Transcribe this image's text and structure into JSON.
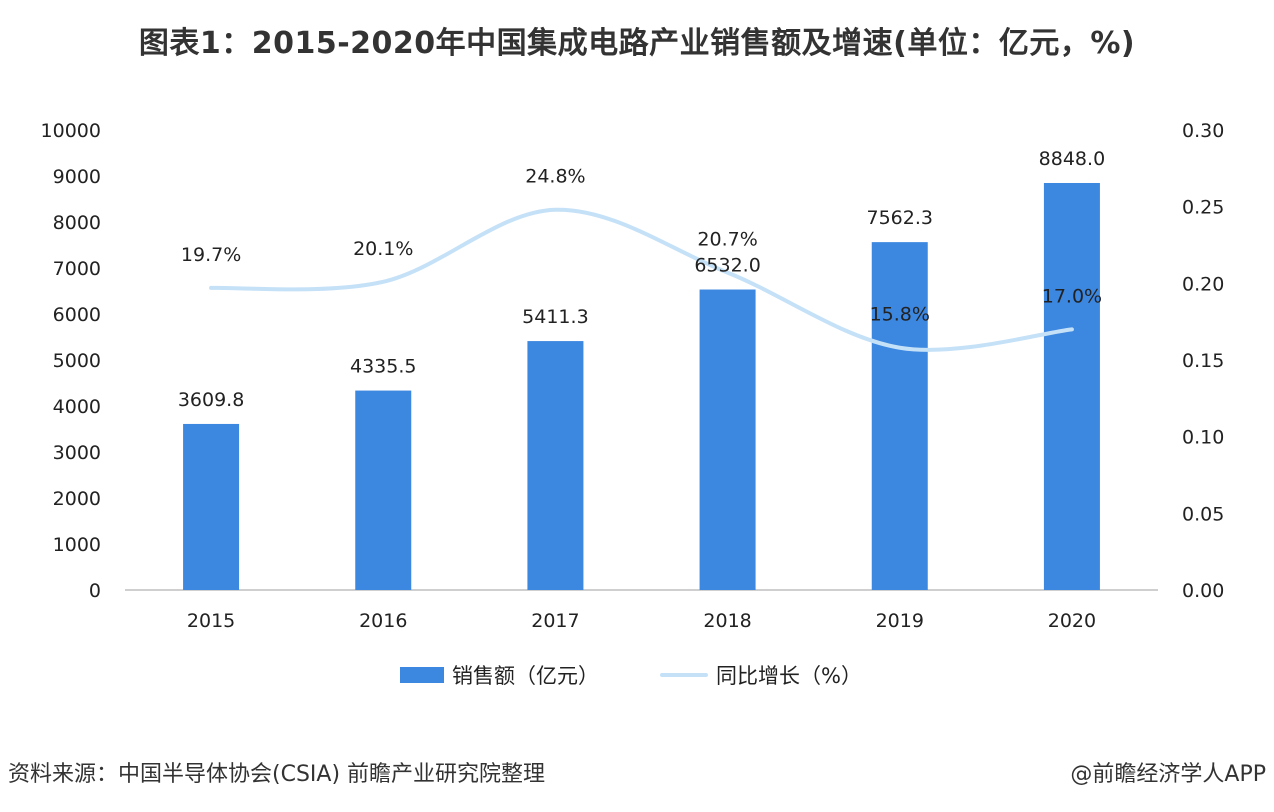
{
  "header": {
    "title": "图表1：2015-2020年中国集成电路产业销售额及增速(单位：亿元，%)"
  },
  "footer": {
    "source": "资料来源：中国半导体协会(CSIA) 前瞻产业研究院整理",
    "credit": "@前瞻经济学人APP"
  },
  "colors": {
    "bar": "#3C87E0",
    "line": "#C5E1F7",
    "axis": "#BFBFBF"
  },
  "chart_data": {
    "type": "bar",
    "categories": [
      "2015",
      "2016",
      "2017",
      "2018",
      "2019",
      "2020"
    ],
    "series": [
      {
        "name": "销售额（亿元）",
        "type": "bar",
        "axis": "left",
        "values": [
          3609.8,
          4335.5,
          5411.3,
          6532.0,
          7562.3,
          8848.0
        ],
        "labels": [
          "3609.8",
          "4335.5",
          "5411.3",
          "6532.0",
          "7562.3",
          "8848.0"
        ]
      },
      {
        "name": "同比增长（%）",
        "type": "line",
        "axis": "right",
        "smooth": true,
        "values": [
          0.197,
          0.201,
          0.248,
          0.207,
          0.158,
          0.17
        ],
        "labels": [
          "19.7%",
          "20.1%",
          "24.8%",
          "20.7%",
          "15.8%",
          "17.0%"
        ]
      }
    ],
    "y_left": {
      "range": [
        0,
        10000
      ],
      "ticks": [
        "0",
        "1000",
        "2000",
        "3000",
        "4000",
        "5000",
        "6000",
        "7000",
        "8000",
        "9000",
        "10000"
      ]
    },
    "y_right": {
      "range": [
        0,
        0.3
      ],
      "ticks": [
        "0.00",
        "0.05",
        "0.10",
        "0.15",
        "0.20",
        "0.25",
        "0.30"
      ]
    },
    "grid": false,
    "legend": "bottom"
  }
}
